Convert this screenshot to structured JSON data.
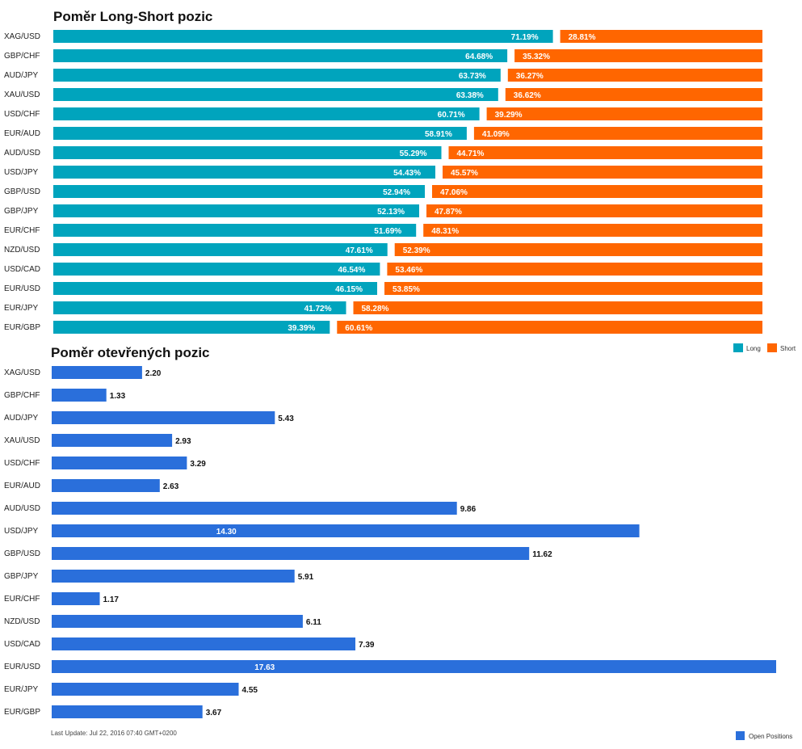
{
  "colors": {
    "long": "#00a4bd",
    "short": "#ff6600",
    "open": "#2a6fdb"
  },
  "footer_text": "Last Update: Jul 22, 2016 07:40 GMT+0200",
  "chart_data": [
    {
      "type": "bar",
      "orientation": "horizontal",
      "stacked": true,
      "title": "Poměr Long-Short pozic",
      "categories": [
        "XAG/USD",
        "GBP/CHF",
        "AUD/JPY",
        "XAU/USD",
        "USD/CHF",
        "EUR/AUD",
        "AUD/USD",
        "USD/JPY",
        "GBP/USD",
        "GBP/JPY",
        "EUR/CHF",
        "NZD/USD",
        "USD/CAD",
        "EUR/USD",
        "EUR/JPY",
        "EUR/GBP"
      ],
      "series": [
        {
          "name": "Long",
          "values": [
            71.19,
            64.68,
            63.73,
            63.38,
            60.71,
            58.91,
            55.29,
            54.43,
            52.94,
            52.13,
            51.69,
            47.61,
            46.54,
            46.15,
            41.72,
            39.39
          ]
        },
        {
          "name": "Short",
          "values": [
            28.81,
            35.32,
            36.27,
            36.62,
            39.29,
            41.09,
            44.71,
            45.57,
            47.06,
            47.87,
            48.31,
            52.39,
            53.46,
            53.85,
            58.28,
            60.61
          ]
        }
      ],
      "value_suffix": "%",
      "legend_position": "bottom-right"
    },
    {
      "type": "bar",
      "orientation": "horizontal",
      "title": "Poměr otevřených pozic",
      "categories": [
        "XAG/USD",
        "GBP/CHF",
        "AUD/JPY",
        "XAU/USD",
        "USD/CHF",
        "EUR/AUD",
        "AUD/USD",
        "USD/JPY",
        "GBP/USD",
        "GBP/JPY",
        "EUR/CHF",
        "NZD/USD",
        "USD/CAD",
        "EUR/USD",
        "EUR/JPY",
        "EUR/GBP"
      ],
      "series": [
        {
          "name": "Open Positions",
          "values": [
            2.2,
            1.33,
            5.43,
            2.93,
            3.29,
            2.63,
            9.86,
            14.3,
            11.62,
            5.91,
            1.17,
            6.11,
            7.39,
            17.63,
            4.55,
            3.67
          ]
        }
      ],
      "legend_position": "bottom-right"
    }
  ]
}
